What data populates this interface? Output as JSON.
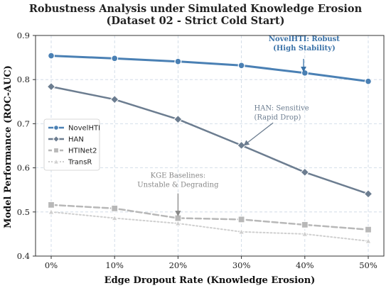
{
  "chart_data": {
    "type": "line",
    "title": "Robustness Analysis under Simulated Knowledge Erosion",
    "subtitle": "(Dataset 02 - Strict Cold Start)",
    "xlabel": "Edge Dropout Rate (Knowledge Erosion)",
    "ylabel": "Model Performance (ROC-AUC)",
    "categories": [
      "0%",
      "10%",
      "20%",
      "30%",
      "40%",
      "50%"
    ],
    "ylim": [
      0.4,
      0.9
    ],
    "yticks": [
      "0.4",
      "0.5",
      "0.6",
      "0.7",
      "0.8",
      "0.9"
    ],
    "grid": true,
    "legend_position": "left",
    "series": [
      {
        "name": "NovelHTI",
        "values": [
          0.854,
          0.848,
          0.841,
          0.832,
          0.815,
          0.796
        ],
        "color": "#4a80b4",
        "marker": "circle",
        "dash": "solid",
        "width": 3
      },
      {
        "name": "HAN",
        "values": [
          0.784,
          0.755,
          0.71,
          0.651,
          0.59,
          0.541
        ],
        "color": "#6c7d90",
        "marker": "diamond",
        "dash": "solid",
        "width": 2.5
      },
      {
        "name": "HTINet2",
        "values": [
          0.516,
          0.508,
          0.486,
          0.483,
          0.471,
          0.46
        ],
        "color": "#b8b8b8",
        "marker": "square",
        "dash": "dashed",
        "width": 2.5
      },
      {
        "name": "TransR",
        "values": [
          0.5,
          0.486,
          0.474,
          0.455,
          0.45,
          0.434
        ],
        "color": "#cfcfcf",
        "marker": "triangle",
        "dash": "dotted",
        "width": 2
      }
    ],
    "annotations": [
      {
        "lines": [
          "NovelHTI: Robust",
          "(High Stability)"
        ],
        "color": "#3a72a8",
        "bold": true,
        "anchor": "middle",
        "text_x": 3.99,
        "text_y": 0.887,
        "arrow_from": [
          3.98,
          0.847
        ],
        "arrow_to": [
          3.98,
          0.82
        ]
      },
      {
        "lines": [
          "HAN: Sensitive",
          "(Rapid Drop)"
        ],
        "color": "#6c7d90",
        "bold": false,
        "anchor": "start",
        "text_x": 3.2,
        "text_y": 0.73,
        "arrow_from": [
          3.5,
          0.702
        ],
        "arrow_to": [
          3.05,
          0.652
        ]
      },
      {
        "lines": [
          "KGE Baselines:",
          "Unstable & Degrading"
        ],
        "color": "#888888",
        "bold": false,
        "anchor": "middle",
        "text_x": 2.0,
        "text_y": 0.578,
        "arrow_from": [
          2.0,
          0.542
        ],
        "arrow_to": [
          2.0,
          0.493
        ]
      }
    ]
  }
}
